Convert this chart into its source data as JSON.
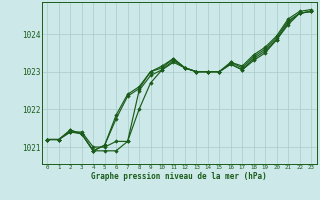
{
  "xlabel": "Graphe pression niveau de la mer (hPa)",
  "xlim": [
    -0.5,
    23.5
  ],
  "ylim": [
    1020.55,
    1024.85
  ],
  "yticks": [
    1021,
    1022,
    1023,
    1024
  ],
  "xticks": [
    0,
    1,
    2,
    3,
    4,
    5,
    6,
    7,
    8,
    9,
    10,
    11,
    12,
    13,
    14,
    15,
    16,
    17,
    18,
    19,
    20,
    21,
    22,
    23
  ],
  "bg_color": "#cce8e8",
  "grid_color": "#aacccc",
  "line_color": "#1a5c1a",
  "series": [
    [
      1021.2,
      1021.2,
      1021.4,
      1021.4,
      1021.0,
      1021.0,
      1021.15,
      1021.15,
      1022.5,
      1022.9,
      1023.05,
      1023.3,
      1023.1,
      1023.0,
      1023.0,
      1023.0,
      1023.2,
      1023.05,
      1023.35,
      1023.55,
      1023.85,
      1024.3,
      1024.55,
      1024.6
    ],
    [
      1021.2,
      1021.2,
      1021.4,
      1021.35,
      1020.9,
      1020.9,
      1020.9,
      1021.15,
      1022.0,
      1022.7,
      1023.05,
      1023.25,
      1023.1,
      1023.0,
      1023.0,
      1023.0,
      1023.2,
      1023.05,
      1023.3,
      1023.5,
      1023.85,
      1024.25,
      1024.55,
      1024.6
    ],
    [
      1021.2,
      1021.2,
      1021.45,
      1021.35,
      1020.9,
      1021.05,
      1021.75,
      1022.35,
      1022.55,
      1023.0,
      1023.1,
      1023.35,
      1023.1,
      1023.0,
      1023.0,
      1023.0,
      1023.25,
      1023.1,
      1023.4,
      1023.6,
      1023.9,
      1024.35,
      1024.55,
      1024.6
    ],
    [
      1021.2,
      1021.2,
      1021.45,
      1021.35,
      1020.9,
      1021.05,
      1021.85,
      1022.4,
      1022.6,
      1023.0,
      1023.15,
      1023.35,
      1023.1,
      1023.0,
      1023.0,
      1023.0,
      1023.25,
      1023.15,
      1023.45,
      1023.65,
      1023.95,
      1024.4,
      1024.6,
      1024.65
    ]
  ]
}
